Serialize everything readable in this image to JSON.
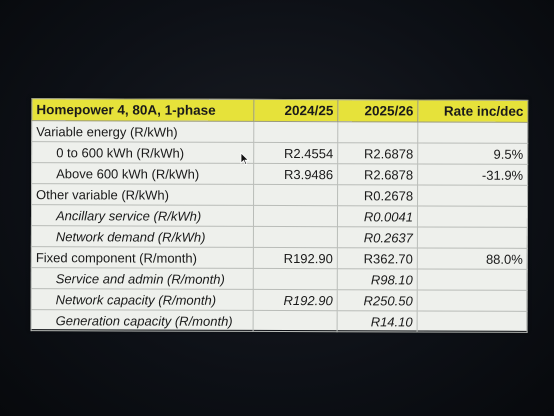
{
  "table": {
    "headers": [
      "Homepower 4, 80A, 1-phase",
      "2024/25",
      "2025/26",
      "Rate inc/dec"
    ],
    "rows": [
      {
        "label": "Variable energy (R/kWh)",
        "v2425": "",
        "v2526": "",
        "rate": ""
      },
      {
        "label": "0 to 600 kWh (R/kWh)",
        "v2425": "R2.4554",
        "v2526": "R2.6878",
        "rate": "9.5%"
      },
      {
        "label": "Above 600 kWh (R/kWh)",
        "v2425": "R3.9486",
        "v2526": "R2.6878",
        "rate": "-31.9%"
      },
      {
        "label": "Other variable (R/kWh)",
        "v2425": "",
        "v2526": "R0.2678",
        "rate": ""
      },
      {
        "label": "Ancillary service (R/kWh)",
        "v2425": "",
        "v2526": "R0.0041",
        "rate": ""
      },
      {
        "label": "Network demand (R/kWh)",
        "v2425": "",
        "v2526": "R0.2637",
        "rate": ""
      },
      {
        "label": "Fixed component (R/month)",
        "v2425": "R192.90",
        "v2526": "R362.70",
        "rate": "88.0%"
      },
      {
        "label": "Service and admin (R/month)",
        "v2425": "",
        "v2526": "R98.10",
        "rate": ""
      },
      {
        "label": "Network capacity (R/month)",
        "v2425": "R192.90",
        "v2526": "R250.50",
        "rate": ""
      },
      {
        "label": "Generation capacity (R/month)",
        "v2425": "",
        "v2526": "R14.10",
        "rate": ""
      }
    ]
  },
  "colors": {
    "header_bg": "#e6e23a",
    "sheet_bg": "#eef0ec",
    "screen_bg": "#0c0f14"
  },
  "icons": {
    "cursor": "mouse-pointer-icon"
  }
}
